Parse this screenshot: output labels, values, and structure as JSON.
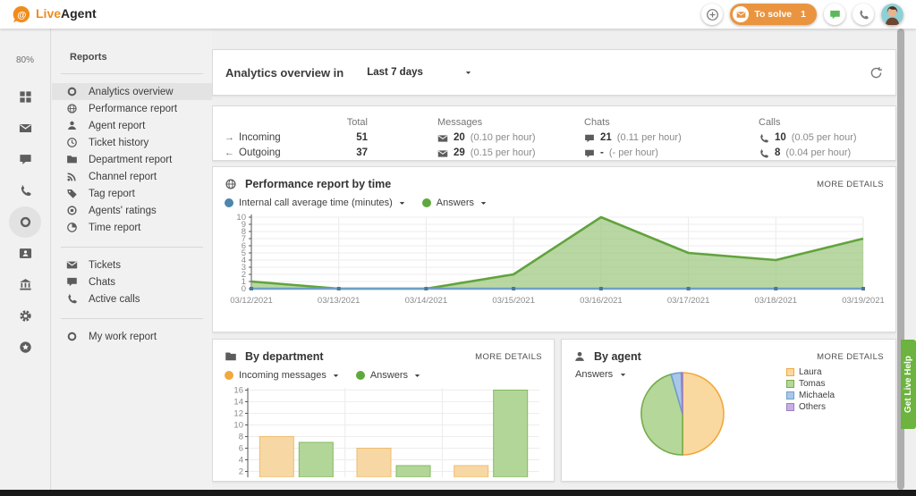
{
  "topbar": {
    "brand_live": "Live",
    "brand_agent": "Agent",
    "to_solve_label": "To solve",
    "to_solve_count": "1",
    "icons": [
      "at-bubble-logo",
      "plus-circle",
      "envelope",
      "chat",
      "phone",
      "avatar"
    ]
  },
  "left_rail": {
    "zoom_level": "80%",
    "icons": [
      {
        "name": "dashboard",
        "icon": "grid",
        "active": false
      },
      {
        "name": "tickets",
        "icon": "envelope",
        "active": false
      },
      {
        "name": "chats",
        "icon": "chat",
        "active": false
      },
      {
        "name": "calls",
        "icon": "phone",
        "active": false
      },
      {
        "name": "reports",
        "icon": "ring",
        "active": true
      },
      {
        "name": "contacts",
        "icon": "card",
        "active": false
      },
      {
        "name": "billing",
        "icon": "bank",
        "active": false
      },
      {
        "name": "settings",
        "icon": "gear",
        "active": false
      },
      {
        "name": "help",
        "icon": "star-circle",
        "active": false
      }
    ]
  },
  "reports_panel": {
    "title": "Reports",
    "groups": [
      {
        "items": [
          {
            "icon": "ring",
            "label": "Analytics overview",
            "active": true
          },
          {
            "icon": "globe",
            "label": "Performance report",
            "active": false
          },
          {
            "icon": "person",
            "label": "Agent report",
            "active": false
          },
          {
            "icon": "clock",
            "label": "Ticket history",
            "active": false
          },
          {
            "icon": "folder",
            "label": "Department report",
            "active": false
          },
          {
            "icon": "rss",
            "label": "Channel report",
            "active": false
          },
          {
            "icon": "tag",
            "label": "Tag report",
            "active": false
          },
          {
            "icon": "dot-ring",
            "label": "Agents' ratings",
            "active": false
          },
          {
            "icon": "pie",
            "label": "Time report",
            "active": false
          }
        ]
      },
      {
        "items": [
          {
            "icon": "envelope",
            "label": "Tickets",
            "active": false
          },
          {
            "icon": "chat",
            "label": "Chats",
            "active": false
          },
          {
            "icon": "phone",
            "label": "Active calls",
            "active": false
          }
        ]
      },
      {
        "items": [
          {
            "icon": "ring",
            "label": "My work report",
            "active": false
          }
        ]
      }
    ]
  },
  "header_card": {
    "title": "Analytics overview in",
    "range_value": "Last 7 days"
  },
  "stats": {
    "columns": [
      "Total",
      "Messages",
      "Chats",
      "Calls"
    ],
    "rows": [
      {
        "arrow": "→",
        "label": "Incoming",
        "total": "51",
        "messages": {
          "count": "20",
          "rate": "(0.10 per hour)"
        },
        "chats": {
          "count": "21",
          "rate": "(0.11 per hour)"
        },
        "calls": {
          "count": "10",
          "rate": "(0.05 per hour)"
        }
      },
      {
        "arrow": "←",
        "label": "Outgoing",
        "total": "37",
        "messages": {
          "count": "29",
          "rate": "(0.15 per hour)"
        },
        "chats": {
          "count": "-",
          "rate": "(- per hour)"
        },
        "calls": {
          "count": "8",
          "rate": "(0.04 per hour)"
        }
      }
    ]
  },
  "performance_section": {
    "title": "Performance report by time",
    "more_label": "MORE DETAILS",
    "legend": [
      {
        "label": "Internal call average time (minutes)",
        "color": "#4e86ad"
      },
      {
        "label": "Answers",
        "color": "#5fa83f"
      }
    ]
  },
  "department_section": {
    "title": "By department",
    "more_label": "MORE DETAILS",
    "legend": [
      {
        "label": "Incoming messages",
        "color": "#f0a93c"
      },
      {
        "label": "Answers",
        "color": "#5fa83f"
      }
    ]
  },
  "agent_section": {
    "title": "By agent",
    "more_label": "MORE DETAILS",
    "filter_value": "Answers"
  },
  "live_help": {
    "label": "Get Live Help",
    "color": "#6cb33f"
  },
  "chart_data": [
    {
      "id": "performance_by_time",
      "type": "area",
      "title": "Performance report by time",
      "x": [
        "03/12/2021",
        "03/13/2021",
        "03/14/2021",
        "03/15/2021",
        "03/16/2021",
        "03/17/2021",
        "03/18/2021",
        "03/19/2021"
      ],
      "series": [
        {
          "name": "Internal call average time (minutes)",
          "color": "#6fa0c4",
          "values": [
            0,
            0,
            0,
            0,
            0,
            0,
            0,
            0
          ]
        },
        {
          "name": "Answers",
          "color": "#61a33c",
          "fill": "#9cc87e",
          "values": [
            1,
            0,
            0,
            2,
            10,
            5,
            4,
            7
          ]
        }
      ],
      "ylim": [
        0,
        10
      ],
      "yticks": [
        0,
        1,
        2,
        3,
        4,
        5,
        6,
        7,
        8,
        9,
        10
      ],
      "grid": true,
      "legend_position": "top"
    },
    {
      "id": "by_department",
      "type": "bar",
      "title": "By department",
      "categories": [
        "",
        "",
        ""
      ],
      "series": [
        {
          "name": "Incoming messages",
          "color": "#f7d8a4",
          "border": "#edbd6f",
          "values": [
            8,
            6,
            3
          ]
        },
        {
          "name": "Answers",
          "color": "#b2d698",
          "border": "#85b95e",
          "values": [
            7,
            3,
            16
          ]
        }
      ],
      "yticks": [
        2,
        4,
        6,
        8,
        10,
        12,
        14,
        16
      ],
      "ylim": [
        0,
        16
      ],
      "grid": true
    },
    {
      "id": "by_agent",
      "type": "pie",
      "title": "By agent",
      "labels": [
        "Laura",
        "Tomas",
        "Michaela",
        "Others"
      ],
      "values": [
        50,
        45.5,
        4,
        0.5
      ],
      "colors": [
        "#fad9a0",
        "#b5d79a",
        "#a8c8e8",
        "#c5b0e0"
      ],
      "borders": [
        "#f0a83c",
        "#74ad4a",
        "#6f9dcf",
        "#9b7fc7"
      ],
      "legend_position": "right"
    }
  ]
}
